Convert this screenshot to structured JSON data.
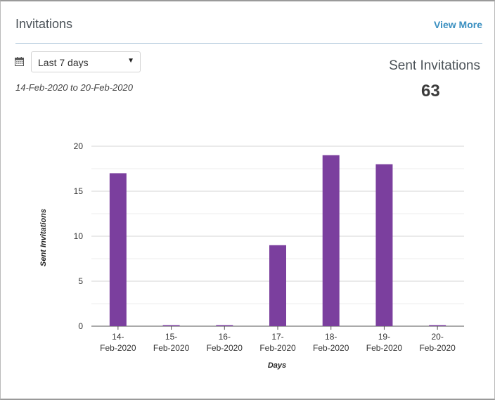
{
  "card": {
    "title": "Invitations",
    "view_more_label": "View More"
  },
  "filter": {
    "icon": "calendar-icon",
    "selected": "Last 7 days",
    "caret": "▼",
    "date_range": "14-Feb-2020 to 20-Feb-2020"
  },
  "summary": {
    "label": "Sent Invitations",
    "value": "63"
  },
  "colors": {
    "bar": "#7b3f9e",
    "link": "#3a8fc0",
    "grid": "#d9d9d9"
  },
  "chart_data": {
    "type": "bar",
    "categories": [
      [
        "14-",
        "Feb-2020"
      ],
      [
        "15-",
        "Feb-2020"
      ],
      [
        "16-",
        "Feb-2020"
      ],
      [
        "17-",
        "Feb-2020"
      ],
      [
        "18-",
        "Feb-2020"
      ],
      [
        "19-",
        "Feb-2020"
      ],
      [
        "20-",
        "Feb-2020"
      ]
    ],
    "values": [
      17,
      0,
      0,
      9,
      19,
      18,
      0
    ],
    "xlabel": "Days",
    "ylabel": "Sent Invitations",
    "ylim": [
      0,
      20
    ],
    "yticks": [
      0,
      5,
      10,
      15,
      20
    ],
    "grid": true
  }
}
